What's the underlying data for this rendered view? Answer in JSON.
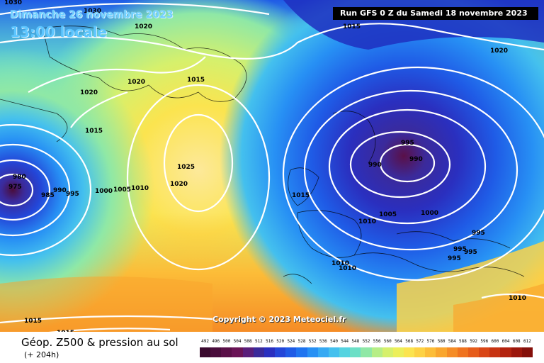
{
  "header": {
    "date": "Dimanche 26 novembre 2023",
    "time": "13:00 locale",
    "run": "Run GFS 0 Z du Samedi 18 novembre 2023"
  },
  "footer": {
    "title": "Géop. Z500 & pression au sol",
    "subtitle": "(+ 204h)",
    "copyright": "Copyright © 2023 Meteociel.fr"
  },
  "scale": {
    "labels": [
      "492",
      "496",
      "500",
      "504",
      "508",
      "512",
      "516",
      "520",
      "524",
      "528",
      "532",
      "536",
      "540",
      "544",
      "548",
      "552",
      "556",
      "560",
      "564",
      "568",
      "572",
      "576",
      "580",
      "584",
      "588",
      "592",
      "596",
      "600",
      "604",
      "608",
      "612"
    ],
    "colors": [
      "#3a0a2e",
      "#4a0d3c",
      "#5a1048",
      "#6a1456",
      "#5a1e7a",
      "#3b2a9a",
      "#2a2fbf",
      "#2346d8",
      "#1f5be6",
      "#1f74f0",
      "#2790f4",
      "#36a9f3",
      "#44c0ee",
      "#55d3e0",
      "#6cdfc6",
      "#8fe8a6",
      "#b6ee86",
      "#d6f06c",
      "#ecef5a",
      "#fbe44f",
      "#fdd244",
      "#fcbd38",
      "#f9a62e",
      "#f58c26",
      "#ef731f",
      "#e65c1a",
      "#d94616",
      "#c73312",
      "#b3230f",
      "#9c170c",
      "#84100a"
    ]
  },
  "isobars": {
    "labels": [
      "1030",
      "1030",
      "1020",
      "1015",
      "1020",
      "1015",
      "1020",
      "1020",
      "1015",
      "1025",
      "1020",
      "980",
      "975",
      "985",
      "990",
      "995",
      "1000",
      "1005",
      "1010",
      "1015",
      "1005",
      "1010",
      "995",
      "990",
      "990",
      "1000",
      "1010",
      "1010",
      "995",
      "995",
      "995",
      "995",
      "1010",
      "1015",
      "1015"
    ]
  },
  "icons": {
    "map": "weather-map-icon"
  }
}
